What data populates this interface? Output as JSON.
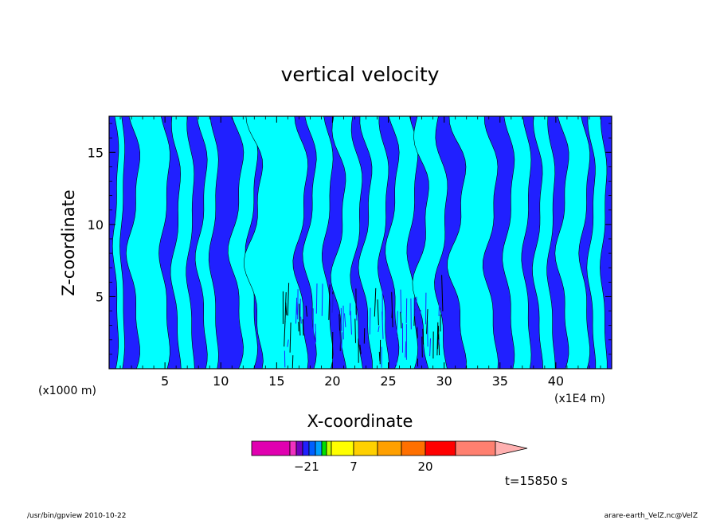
{
  "chart_data": {
    "type": "heatmap",
    "title": "vertical velocity",
    "xlabel": "X-coordinate",
    "ylabel": "Z-coordinate",
    "x_unit_left": "(x1000 m)",
    "x_unit_right": "(x1E4 m)",
    "xlim": [
      0,
      45
    ],
    "ylim": [
      0,
      17.5
    ],
    "x_ticks": [
      5,
      10,
      15,
      20,
      25,
      30,
      35,
      40
    ],
    "y_ticks": [
      5,
      10,
      15
    ],
    "x_tick_labels": [
      "5",
      "10",
      "15",
      "20",
      "25",
      "30",
      "35",
      "40"
    ],
    "y_tick_labels": [
      "5",
      "10",
      "15"
    ],
    "contour_fill_colors": [
      "#2020ff",
      "#00ffff"
    ],
    "colorbar": {
      "colors": [
        "#e000b0",
        "#f030c0",
        "#7000c0",
        "#2020ff",
        "#0060ff",
        "#00a0ff",
        "#00e000",
        "#c0ff00",
        "#ffff00",
        "#ffd000",
        "#ffa000",
        "#ff7000",
        "#ff0000",
        "#ff8070",
        "#ffb0b0"
      ],
      "labels": [
        {
          "text": "−2",
          "value": -2
        },
        {
          "text": "1",
          "value": 1
        },
        {
          "text": "7",
          "value": 7
        },
        {
          "text": "20",
          "value": 20
        }
      ]
    },
    "time_label": "t=15850 s",
    "footer_left": "/usr/bin/gpview   2010-10-22",
    "footer_right": "arare-earth_VelZ.nc@VelZ"
  }
}
